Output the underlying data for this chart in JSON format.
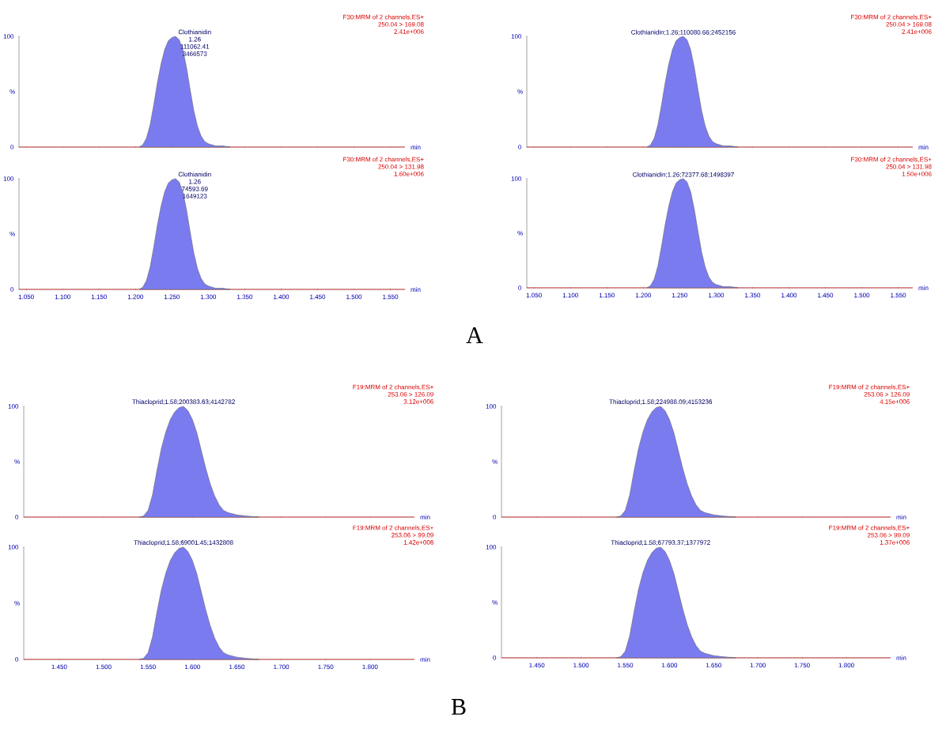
{
  "chart_data": [
    {
      "type": "area",
      "title": "F30:MRM of 2 channels,ES+",
      "subtitle": "250.04 > 169.08",
      "xlabel": "min",
      "xlim": [
        1.04,
        1.57
      ],
      "xticks": [
        {
          "value": 1.05,
          "label": null
        },
        {
          "value": 1.1,
          "label": null
        },
        {
          "value": 1.15,
          "label": null
        },
        {
          "value": 1.2,
          "label": null
        },
        {
          "value": 1.25,
          "label": null
        },
        {
          "value": 1.3,
          "label": null
        },
        {
          "value": 1.35,
          "label": null
        },
        {
          "value": 1.4,
          "label": null
        },
        {
          "value": 1.45,
          "label": null
        },
        {
          "value": 1.5,
          "label": null
        },
        {
          "value": 1.55,
          "label": null
        }
      ],
      "ylim": [
        0,
        100
      ],
      "yticks": [
        0,
        100
      ],
      "ylabel": "%",
      "tick_labels": "y",
      "annotations": [
        "2.41e+006",
        "Clothianidin",
        "1.26",
        "111062.41",
        "3466573"
      ],
      "series": [
        {
          "type": "line",
          "color": "#e03030",
          "x": [
            1.04,
            1.57
          ],
          "values": [
            0,
            0
          ]
        },
        {
          "type": "area",
          "color": "#7b7bf0",
          "x": [
            1.205,
            1.21,
            1.215,
            1.22,
            1.225,
            1.23,
            1.235,
            1.24,
            1.245,
            1.25,
            1.255,
            1.26,
            1.265,
            1.27,
            1.275,
            1.28,
            1.285,
            1.29,
            1.295,
            1.3,
            1.31,
            1.32,
            1.33
          ],
          "values": [
            0,
            2,
            8,
            20,
            38,
            58,
            75,
            88,
            96,
            99,
            100,
            97,
            88,
            72,
            52,
            33,
            19,
            10,
            5,
            3,
            1,
            1,
            0
          ]
        }
      ]
    },
    {
      "type": "area",
      "title": "F30:MRM of 2 channels,ES+",
      "subtitle": "250.04 > 169.08",
      "xlabel": "min",
      "xlim": [
        1.04,
        1.57
      ],
      "xticks": [
        {
          "value": 1.05,
          "label": null
        },
        {
          "value": 1.1,
          "label": null
        },
        {
          "value": 1.15,
          "label": null
        },
        {
          "value": 1.2,
          "label": null
        },
        {
          "value": 1.25,
          "label": null
        },
        {
          "value": 1.3,
          "label": null
        },
        {
          "value": 1.35,
          "label": null
        },
        {
          "value": 1.4,
          "label": null
        },
        {
          "value": 1.45,
          "label": null
        },
        {
          "value": 1.5,
          "label": null
        },
        {
          "value": 1.55,
          "label": null
        }
      ],
      "ylim": [
        0,
        100
      ],
      "yticks": [
        0,
        100
      ],
      "ylabel": "%",
      "tick_labels": "y",
      "annotations": [
        "2.41e+006",
        "Clothianidin;1.26;110080.66;2452156"
      ],
      "series": [
        {
          "type": "line",
          "color": "#e03030",
          "x": [
            1.04,
            1.57
          ],
          "values": [
            0,
            0
          ]
        },
        {
          "type": "area",
          "color": "#7b7bf0",
          "x": [
            1.205,
            1.21,
            1.215,
            1.22,
            1.225,
            1.23,
            1.235,
            1.24,
            1.245,
            1.25,
            1.255,
            1.26,
            1.265,
            1.27,
            1.275,
            1.28,
            1.285,
            1.29,
            1.295,
            1.3,
            1.31,
            1.32,
            1.33
          ],
          "values": [
            0,
            2,
            8,
            20,
            38,
            58,
            75,
            88,
            96,
            99,
            100,
            97,
            88,
            72,
            52,
            33,
            19,
            10,
            5,
            3,
            1,
            1,
            0
          ]
        }
      ]
    },
    {
      "type": "area",
      "title": "F30:MRM of 2 channels,ES+",
      "subtitle": "250.04 > 131.98",
      "xlabel": "min",
      "xlim": [
        1.04,
        1.57
      ],
      "xticks": [
        {
          "value": 1.05,
          "label": "1.050"
        },
        {
          "value": 1.1,
          "label": "1.100"
        },
        {
          "value": 1.15,
          "label": "1.150"
        },
        {
          "value": 1.2,
          "label": "1.200"
        },
        {
          "value": 1.25,
          "label": "1.250"
        },
        {
          "value": 1.3,
          "label": "1.300"
        },
        {
          "value": 1.35,
          "label": "1.350"
        },
        {
          "value": 1.4,
          "label": "1.400"
        },
        {
          "value": 1.45,
          "label": "1.450"
        },
        {
          "value": 1.5,
          "label": "1.500"
        },
        {
          "value": 1.55,
          "label": "1.550"
        }
      ],
      "ylim": [
        0,
        100
      ],
      "yticks": [
        0,
        100
      ],
      "ylabel": "%",
      "annotations": [
        "1.60e+006",
        "Clothianidin",
        "1.26",
        "74593.69",
        "1649123"
      ],
      "series": [
        {
          "type": "line",
          "color": "#e03030",
          "x": [
            1.04,
            1.57
          ],
          "values": [
            0,
            0
          ]
        },
        {
          "type": "area",
          "color": "#7b7bf0",
          "x": [
            1.205,
            1.21,
            1.215,
            1.22,
            1.225,
            1.23,
            1.235,
            1.24,
            1.245,
            1.25,
            1.255,
            1.26,
            1.265,
            1.27,
            1.275,
            1.28,
            1.285,
            1.29,
            1.295,
            1.3,
            1.31,
            1.32,
            1.33
          ],
          "values": [
            0,
            2,
            8,
            20,
            38,
            58,
            75,
            88,
            96,
            99,
            100,
            97,
            88,
            72,
            52,
            33,
            19,
            10,
            5,
            3,
            1,
            1,
            0
          ]
        }
      ]
    },
    {
      "type": "area",
      "title": "F30:MRM of 2 channels,ES+",
      "subtitle": "250.04 > 131.98",
      "xlabel": "min",
      "xlim": [
        1.04,
        1.57
      ],
      "xticks": [
        {
          "value": 1.05,
          "label": "1.050"
        },
        {
          "value": 1.1,
          "label": "1.100"
        },
        {
          "value": 1.15,
          "label": "1.150"
        },
        {
          "value": 1.2,
          "label": "1.200"
        },
        {
          "value": 1.25,
          "label": "1.250"
        },
        {
          "value": 1.3,
          "label": "1.300"
        },
        {
          "value": 1.35,
          "label": "1.350"
        },
        {
          "value": 1.4,
          "label": "1.400"
        },
        {
          "value": 1.45,
          "label": "1.450"
        },
        {
          "value": 1.5,
          "label": "1.500"
        },
        {
          "value": 1.55,
          "label": "1.550"
        }
      ],
      "ylim": [
        0,
        100
      ],
      "yticks": [
        0,
        100
      ],
      "ylabel": "%",
      "annotations": [
        "1.50e+006",
        "Clothianidin;1.26;72377.68;1498397"
      ],
      "series": [
        {
          "type": "line",
          "color": "#e03030",
          "x": [
            1.04,
            1.57
          ],
          "values": [
            0,
            0
          ]
        },
        {
          "type": "area",
          "color": "#7b7bf0",
          "x": [
            1.205,
            1.21,
            1.215,
            1.22,
            1.225,
            1.23,
            1.235,
            1.24,
            1.245,
            1.25,
            1.255,
            1.26,
            1.265,
            1.27,
            1.275,
            1.28,
            1.285,
            1.29,
            1.295,
            1.3,
            1.31,
            1.32,
            1.33
          ],
          "values": [
            0,
            2,
            8,
            20,
            38,
            58,
            75,
            88,
            96,
            99,
            100,
            97,
            88,
            72,
            52,
            33,
            19,
            10,
            5,
            3,
            1,
            1,
            0
          ]
        }
      ]
    },
    {
      "type": "other",
      "title": "A"
    },
    {
      "type": "area",
      "title": "F19:MRM of 2 channels,ES+",
      "subtitle": "253.06 > 126.09",
      "xlabel": "min",
      "xlim": [
        1.41,
        1.85
      ],
      "xticks": [
        {
          "value": 1.45,
          "label": null
        },
        {
          "value": 1.5,
          "label": null
        },
        {
          "value": 1.55,
          "label": null
        },
        {
          "value": 1.6,
          "label": null
        },
        {
          "value": 1.65,
          "label": null
        },
        {
          "value": 1.7,
          "label": null
        },
        {
          "value": 1.75,
          "label": null
        },
        {
          "value": 1.8,
          "label": null
        }
      ],
      "ylim": [
        0,
        100
      ],
      "yticks": [
        0,
        100
      ],
      "ylabel": "%",
      "tick_labels": "y",
      "annotations": [
        "3.12e+006",
        "Thiacloprid;1.58;200383.63;4142782"
      ],
      "series": [
        {
          "type": "line",
          "color": "#e03030",
          "x": [
            1.41,
            1.85
          ],
          "values": [
            0,
            0
          ]
        },
        {
          "type": "area",
          "color": "#7b7bf0",
          "x": [
            1.54,
            1.545,
            1.55,
            1.555,
            1.56,
            1.565,
            1.57,
            1.575,
            1.58,
            1.585,
            1.59,
            1.595,
            1.6,
            1.605,
            1.61,
            1.615,
            1.62,
            1.625,
            1.63,
            1.635,
            1.64,
            1.65,
            1.66,
            1.675
          ],
          "values": [
            0,
            1,
            6,
            20,
            42,
            62,
            77,
            88,
            95,
            99,
            100,
            96,
            88,
            76,
            60,
            44,
            30,
            19,
            11,
            6,
            4,
            2,
            1,
            0
          ]
        }
      ]
    },
    {
      "type": "area",
      "title": "F19:MRM of 2 channels,ES+",
      "subtitle": "253.06 > 126.09",
      "xlabel": "min",
      "xlim": [
        1.41,
        1.85
      ],
      "xticks": [
        {
          "value": 1.45,
          "label": null
        },
        {
          "value": 1.5,
          "label": null
        },
        {
          "value": 1.55,
          "label": null
        },
        {
          "value": 1.6,
          "label": null
        },
        {
          "value": 1.65,
          "label": null
        },
        {
          "value": 1.7,
          "label": null
        },
        {
          "value": 1.75,
          "label": null
        },
        {
          "value": 1.8,
          "label": null
        }
      ],
      "ylim": [
        0,
        100
      ],
      "yticks": [
        0,
        100
      ],
      "ylabel": "%",
      "tick_labels": "y",
      "annotations": [
        "4.15e+006",
        "Thiacloprid;1.58;224988.09;4153236"
      ],
      "series": [
        {
          "type": "line",
          "color": "#e03030",
          "x": [
            1.41,
            1.85
          ],
          "values": [
            0,
            0
          ]
        },
        {
          "type": "area",
          "color": "#7b7bf0",
          "x": [
            1.54,
            1.545,
            1.55,
            1.555,
            1.56,
            1.565,
            1.57,
            1.575,
            1.58,
            1.585,
            1.59,
            1.595,
            1.6,
            1.605,
            1.61,
            1.615,
            1.62,
            1.625,
            1.63,
            1.635,
            1.64,
            1.65,
            1.66,
            1.675
          ],
          "values": [
            0,
            1,
            6,
            20,
            42,
            62,
            77,
            88,
            95,
            99,
            100,
            96,
            88,
            76,
            60,
            44,
            30,
            19,
            11,
            6,
            4,
            2,
            1,
            0
          ]
        }
      ]
    },
    {
      "type": "area",
      "title": "F19:MRM of 2 channels,ES+",
      "subtitle": "253.06 > 99.09",
      "xlabel": "min",
      "xlim": [
        1.41,
        1.85
      ],
      "xticks": [
        {
          "value": 1.45,
          "label": "1.450"
        },
        {
          "value": 1.5,
          "label": "1.500"
        },
        {
          "value": 1.55,
          "label": "1.550"
        },
        {
          "value": 1.6,
          "label": "1.600"
        },
        {
          "value": 1.65,
          "label": "1.650"
        },
        {
          "value": 1.7,
          "label": "1.700"
        },
        {
          "value": 1.75,
          "label": "1.750"
        },
        {
          "value": 1.8,
          "label": "1.800"
        }
      ],
      "ylim": [
        0,
        100
      ],
      "yticks": [
        0,
        100
      ],
      "ylabel": "%",
      "annotations": [
        "1.42e+006",
        "Thiacloprid;1.58;69001.45;1432808"
      ],
      "series": [
        {
          "type": "line",
          "color": "#e03030",
          "x": [
            1.41,
            1.85
          ],
          "values": [
            0,
            0
          ]
        },
        {
          "type": "area",
          "color": "#7b7bf0",
          "x": [
            1.54,
            1.545,
            1.55,
            1.555,
            1.56,
            1.565,
            1.57,
            1.575,
            1.58,
            1.585,
            1.59,
            1.595,
            1.6,
            1.605,
            1.61,
            1.615,
            1.62,
            1.625,
            1.63,
            1.635,
            1.64,
            1.65,
            1.66,
            1.675
          ],
          "values": [
            0,
            1,
            6,
            20,
            42,
            62,
            77,
            88,
            95,
            99,
            100,
            96,
            88,
            76,
            60,
            44,
            30,
            19,
            11,
            6,
            4,
            2,
            1,
            0
          ]
        }
      ]
    },
    {
      "type": "area",
      "title": "F19:MRM of 2 channels,ES+",
      "subtitle": "253.06 > 99.09",
      "xlabel": "min",
      "xlim": [
        1.41,
        1.85
      ],
      "xticks": [
        {
          "value": 1.45,
          "label": "1.450"
        },
        {
          "value": 1.5,
          "label": "1.500"
        },
        {
          "value": 1.55,
          "label": "1.550"
        },
        {
          "value": 1.6,
          "label": "1.600"
        },
        {
          "value": 1.65,
          "label": "1.650"
        },
        {
          "value": 1.7,
          "label": "1.700"
        },
        {
          "value": 1.75,
          "label": "1.750"
        },
        {
          "value": 1.8,
          "label": "1.800"
        }
      ],
      "ylim": [
        0,
        100
      ],
      "yticks": [
        0,
        100
      ],
      "ylabel": "%",
      "annotations": [
        "1.37e+006",
        "Thiacloprid;1.58;67793.37;1377972"
      ],
      "series": [
        {
          "type": "line",
          "color": "#e03030",
          "x": [
            1.41,
            1.85
          ],
          "values": [
            0,
            0
          ]
        },
        {
          "type": "area",
          "color": "#7b7bf0",
          "x": [
            1.54,
            1.545,
            1.55,
            1.555,
            1.56,
            1.565,
            1.57,
            1.575,
            1.58,
            1.585,
            1.59,
            1.595,
            1.6,
            1.605,
            1.61,
            1.615,
            1.62,
            1.625,
            1.63,
            1.635,
            1.64,
            1.65,
            1.66,
            1.675
          ],
          "values": [
            0,
            1,
            6,
            20,
            42,
            62,
            77,
            88,
            95,
            99,
            100,
            96,
            88,
            76,
            60,
            44,
            30,
            19,
            11,
            6,
            4,
            2,
            1,
            0
          ]
        }
      ]
    },
    {
      "type": "other",
      "title": "B"
    }
  ]
}
